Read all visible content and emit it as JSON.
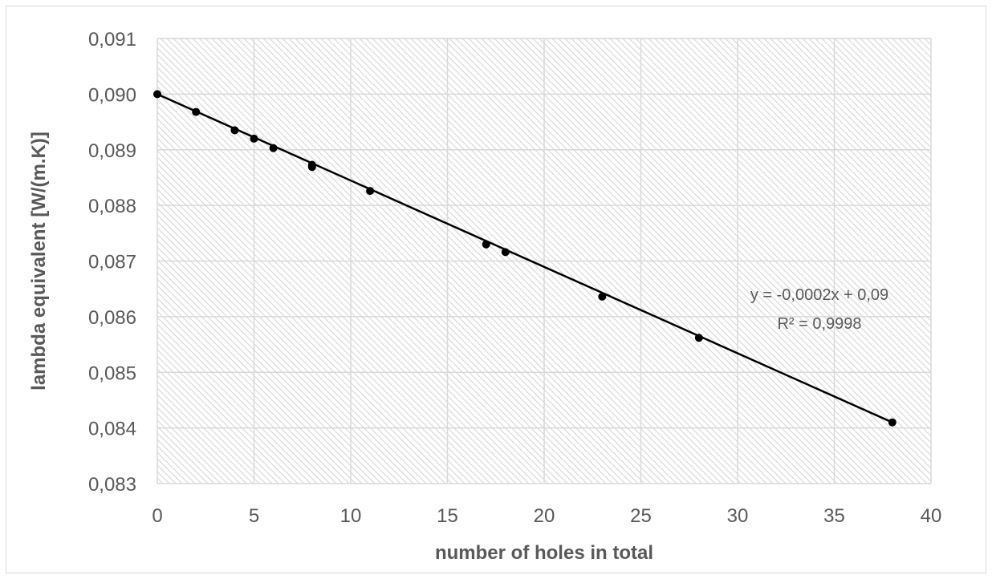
{
  "chart_data": {
    "type": "scatter",
    "title": "",
    "xlabel": "number of holes in total",
    "ylabel": "lambda equivalent  [W/(m.K)]",
    "xlim": [
      0,
      40
    ],
    "ylim": [
      0.083,
      0.091
    ],
    "x_ticks": [
      "0",
      "5",
      "10",
      "15",
      "20",
      "25",
      "30",
      "35",
      "40"
    ],
    "y_ticks": [
      "0,083",
      "0,084",
      "0,085",
      "0,086",
      "0,087",
      "0,088",
      "0,089",
      "0,090",
      "0,091"
    ],
    "grid": true,
    "legend": "none",
    "series": [
      {
        "points": [
          {
            "x": 0,
            "y": 0.09
          },
          {
            "x": 2,
            "y": 0.08968
          },
          {
            "x": 4,
            "y": 0.08935
          },
          {
            "x": 5,
            "y": 0.0892
          },
          {
            "x": 6,
            "y": 0.08903
          },
          {
            "x": 8,
            "y": 0.08873
          },
          {
            "x": 8,
            "y": 0.08869
          },
          {
            "x": 11,
            "y": 0.08826
          },
          {
            "x": 17,
            "y": 0.0873
          },
          {
            "x": 18,
            "y": 0.08716
          },
          {
            "x": 23,
            "y": 0.08636
          },
          {
            "x": 28,
            "y": 0.08562
          },
          {
            "x": 38,
            "y": 0.0841
          }
        ],
        "color": "#000000"
      }
    ],
    "trendline": {
      "type": "linear",
      "start": {
        "x": 0,
        "y": 0.09
      },
      "end": {
        "x": 38,
        "y": 0.0841
      },
      "equation": "y = -0,0002x + 0,09",
      "r_squared": "R² = 0,9998"
    }
  },
  "colors": {
    "grid": "#d9d9d9",
    "hatch": "#d9d9d9",
    "text": "#595959",
    "marker": "#000000"
  }
}
